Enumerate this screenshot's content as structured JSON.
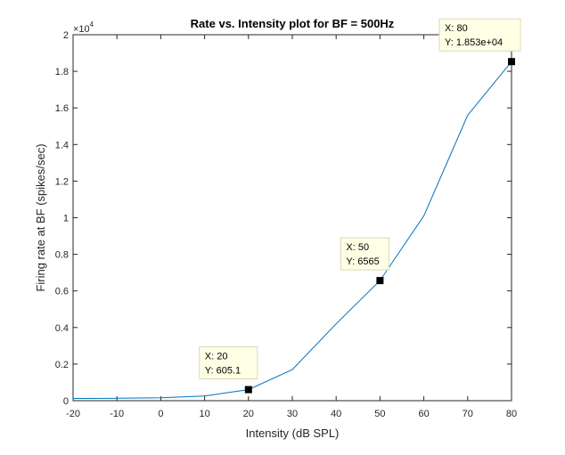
{
  "chart_data": {
    "type": "line",
    "title": "Rate vs. Intensity plot for BF = 500Hz",
    "xlabel": "Intensity (dB SPL)",
    "ylabel": "Firing rate at BF (spikes/sec)",
    "xlim": [
      -20,
      80
    ],
    "ylim": [
      0,
      20000
    ],
    "x_ticks": [
      -20,
      -10,
      0,
      10,
      20,
      30,
      40,
      50,
      60,
      70,
      80
    ],
    "x_tick_labels": [
      "-20",
      "-10",
      "0",
      "10",
      "20",
      "30",
      "40",
      "50",
      "60",
      "70",
      "80"
    ],
    "y_ticks": [
      0,
      2000,
      4000,
      6000,
      8000,
      10000,
      12000,
      14000,
      16000,
      18000,
      20000
    ],
    "y_tick_labels": [
      "0",
      "0.2",
      "0.4",
      "0.6",
      "0.8",
      "1",
      "1.2",
      "1.4",
      "1.6",
      "1.8",
      "2"
    ],
    "y_exponent_label": "×10",
    "y_exponent_power": "4",
    "grid": false,
    "series": [
      {
        "color": "#0072BD",
        "x": [
          -20,
          -10,
          0,
          10,
          20,
          30,
          40,
          50,
          60,
          70,
          80
        ],
        "y": [
          120,
          130,
          160,
          260,
          605.1,
          1700,
          4200,
          6565,
          10100,
          15600,
          18530
        ]
      }
    ],
    "datatips": [
      {
        "x": 20,
        "y": 605.1,
        "label_x": "X: 20",
        "label_y": "Y: 605.1"
      },
      {
        "x": 50,
        "y": 6565,
        "label_x": "X: 50",
        "label_y": "Y: 6565"
      },
      {
        "x": 80,
        "y": 18530,
        "label_x": "X: 80",
        "label_y": "Y: 1.853e+04"
      }
    ]
  }
}
